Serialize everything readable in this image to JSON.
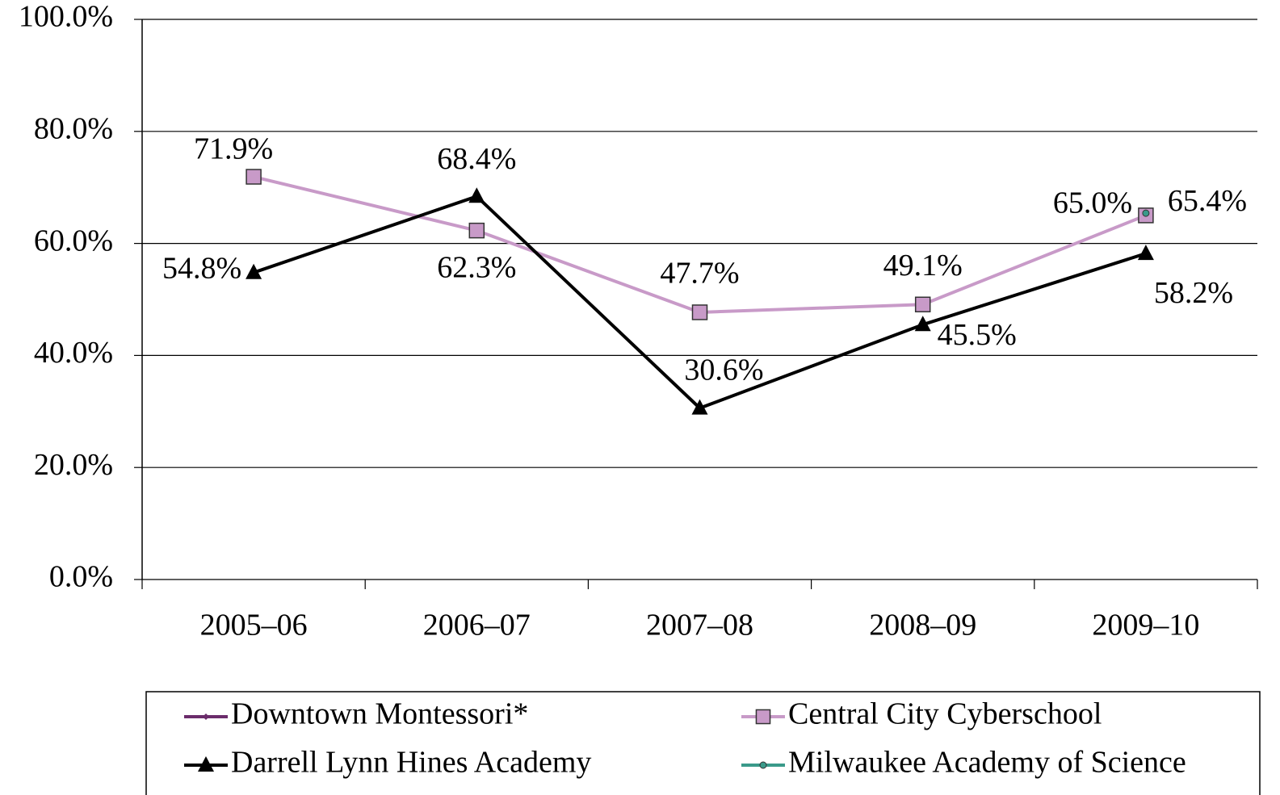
{
  "chart_data": {
    "type": "line",
    "categories": [
      "2005–06",
      "2006–07",
      "2007–08",
      "2008–09",
      "2009–10"
    ],
    "ylim": [
      0,
      100
    ],
    "yticks": [
      {
        "value": 0,
        "label": "0.0%"
      },
      {
        "value": 20,
        "label": "20.0%"
      },
      {
        "value": 40,
        "label": "40.0%"
      },
      {
        "value": 60,
        "label": "60.0%"
      },
      {
        "value": 80,
        "label": "80.0%"
      },
      {
        "value": 100,
        "label": "100.0%"
      }
    ],
    "grid": true,
    "legend": "bottom",
    "series": [
      {
        "name": "Downtown Montessori*",
        "color": "#6b2c6b",
        "marker": "diamond",
        "values": [
          null,
          null,
          null,
          null,
          null
        ],
        "value_labels": [
          null,
          null,
          null,
          null,
          null
        ]
      },
      {
        "name": "Central City Cyberschool",
        "color": "#c89ac8",
        "marker": "square",
        "values": [
          71.9,
          62.3,
          47.7,
          49.1,
          65.0
        ],
        "value_labels": [
          "71.9%",
          "62.3%",
          "47.7%",
          "49.1%",
          "65.0%"
        ]
      },
      {
        "name": "Darrell Lynn Hines Academy",
        "color": "#000000",
        "marker": "triangle",
        "values": [
          54.8,
          68.4,
          30.6,
          45.5,
          58.2
        ],
        "value_labels": [
          "54.8%",
          "68.4%",
          "30.6%",
          "45.5%",
          "58.2%"
        ]
      },
      {
        "name": "Milwaukee Academy of Science",
        "color": "#3a9a8a",
        "marker": "circle",
        "values": [
          null,
          null,
          null,
          null,
          65.4
        ],
        "value_labels": [
          null,
          null,
          null,
          null,
          "65.4%"
        ]
      }
    ]
  }
}
